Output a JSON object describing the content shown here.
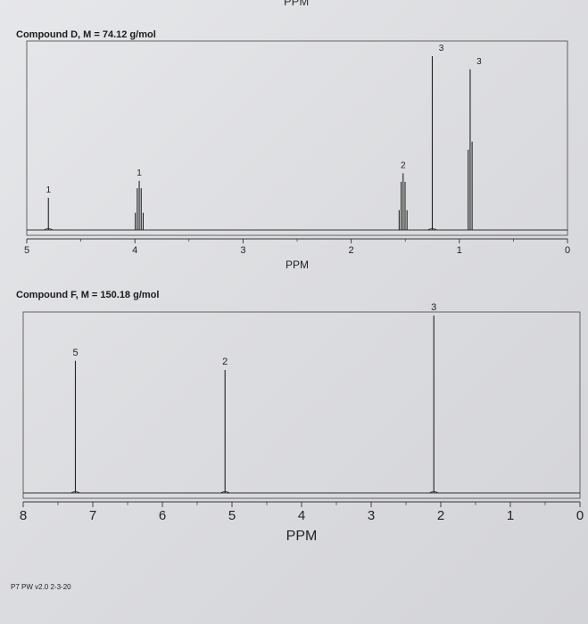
{
  "header": {
    "top_ppm": "PPM"
  },
  "footer": {
    "text": "P7 PW v2.0 2-3-20"
  },
  "chart_data": [
    {
      "type": "line",
      "title": "Compound D, M = 74.12 g/mol",
      "xlabel": "PPM",
      "xlim": [
        5,
        0
      ],
      "x_ticks": [
        "5",
        "4",
        "3",
        "2",
        "1",
        "0"
      ],
      "peaks": [
        {
          "ppm": 4.8,
          "height": 0.17,
          "label": "1",
          "lines": 1
        },
        {
          "ppm": 3.96,
          "height": 0.26,
          "label": "1",
          "lines": 5
        },
        {
          "ppm": 1.52,
          "height": 0.3,
          "label": "2",
          "lines": 5
        },
        {
          "ppm": 1.25,
          "height": 0.92,
          "label": "3",
          "lines": 1
        },
        {
          "ppm": 0.9,
          "height": 0.85,
          "label": "3",
          "lines": 3
        }
      ]
    },
    {
      "type": "line",
      "title": "Compound F, M = 150.18 g/mol",
      "xlabel": "PPM",
      "xlim": [
        8,
        0
      ],
      "x_ticks": [
        "8",
        "7",
        "6",
        "5",
        "4",
        "3",
        "2",
        "1",
        "0"
      ],
      "peaks": [
        {
          "ppm": 7.25,
          "height": 0.73,
          "label": "5",
          "lines": 1
        },
        {
          "ppm": 5.1,
          "height": 0.68,
          "label": "2",
          "lines": 1
        },
        {
          "ppm": 2.1,
          "height": 0.98,
          "label": "3",
          "lines": 1
        }
      ]
    }
  ]
}
